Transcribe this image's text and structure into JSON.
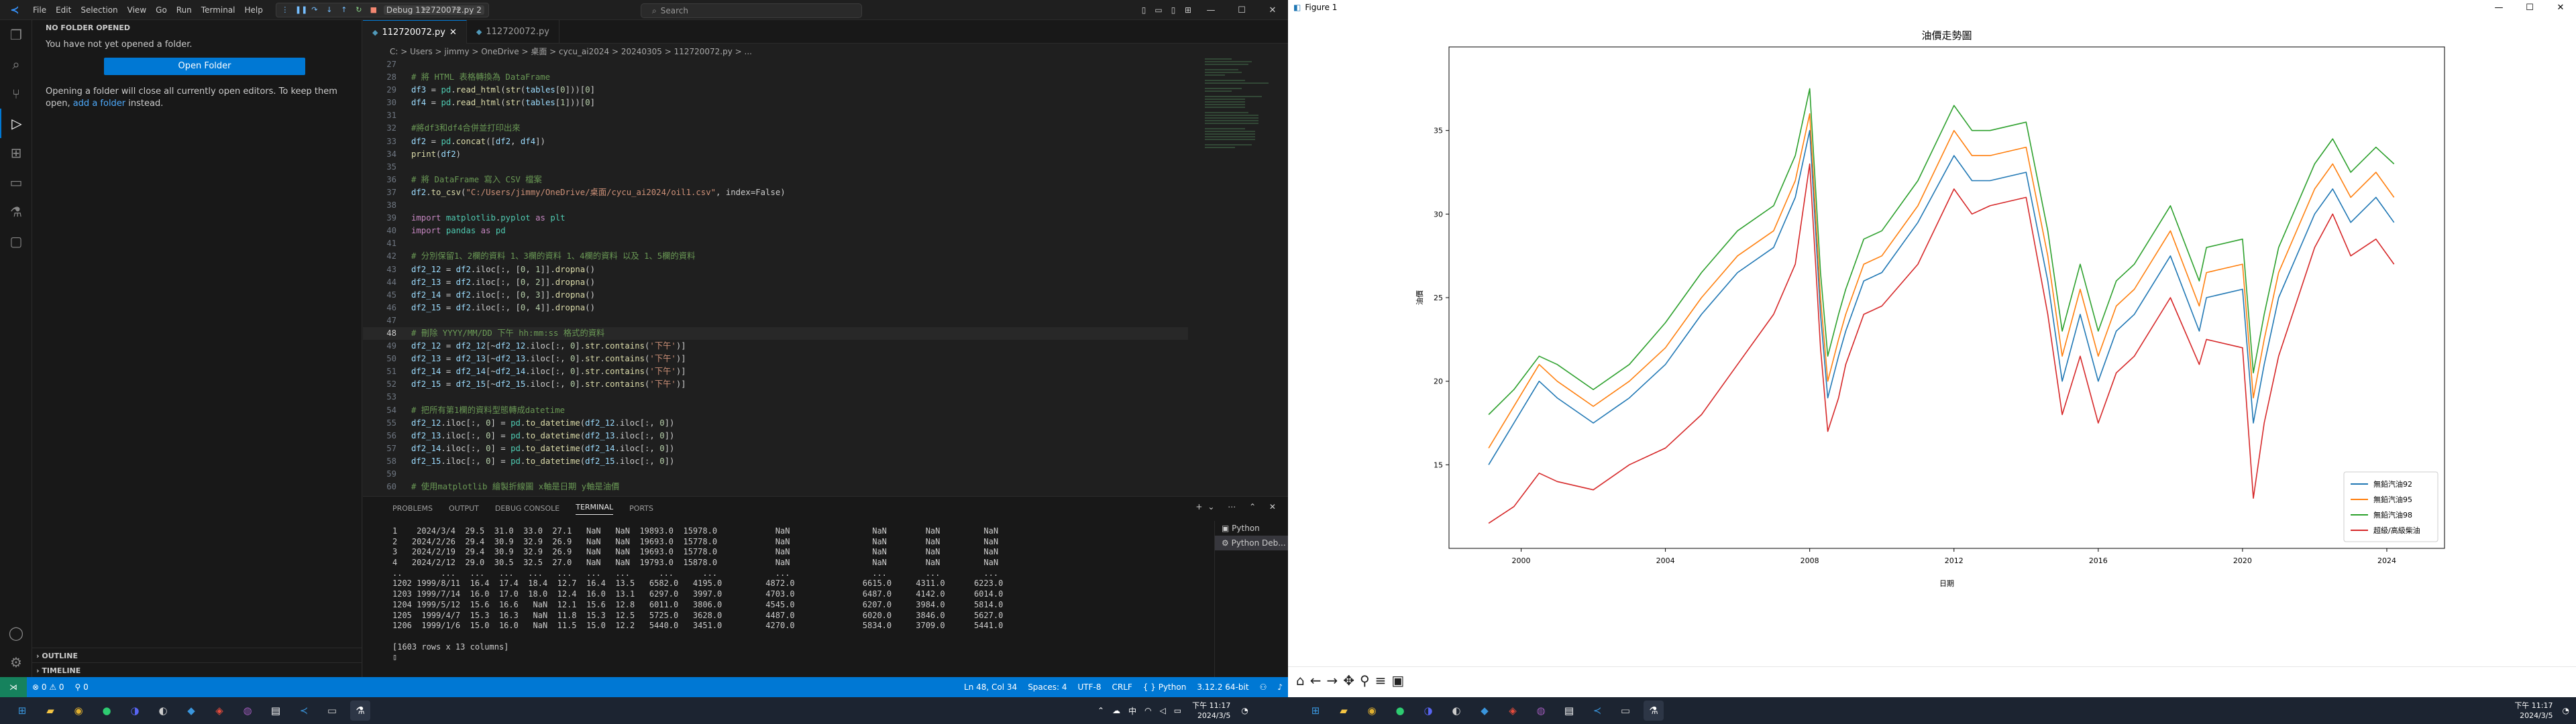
{
  "vscode": {
    "menu": [
      "File",
      "Edit",
      "Selection",
      "View",
      "Go",
      "Run",
      "Terminal",
      "Help"
    ],
    "debug_config": "Debug 112720072.py 2",
    "search_placeholder": "Search",
    "tabs": [
      {
        "label": "112720072.py",
        "active": true
      },
      {
        "label": "112720072.py",
        "active": false
      }
    ],
    "breadcrumb": "C: > Users > jimmy > OneDrive > 桌面 > cycu_ai2024 > 20240305 > 112720072.py > ...",
    "sidebar": {
      "title": "NO FOLDER OPENED",
      "line1": "You have not yet opened a folder.",
      "button": "Open Folder",
      "line2_pre": "Opening a folder will close all currently open editors. To keep them open, ",
      "line2_link": "add a folder",
      "line2_post": " instead.",
      "outline": "OUTLINE",
      "timeline": "TIMELINE"
    },
    "code_lines": [
      {
        "n": "27",
        "t": ""
      },
      {
        "n": "28",
        "t": "# 將 HTML 表格轉換為 DataFrame"
      },
      {
        "n": "29",
        "t": "df3 = pd.read_html(str(tables[0]))[0]"
      },
      {
        "n": "30",
        "t": "df4 = pd.read_html(str(tables[1]))[0]"
      },
      {
        "n": "31",
        "t": ""
      },
      {
        "n": "32",
        "t": "#將df3和df4合併並打印出來"
      },
      {
        "n": "33",
        "t": "df2 = pd.concat([df2, df4])"
      },
      {
        "n": "34",
        "t": "print(df2)"
      },
      {
        "n": "35",
        "t": ""
      },
      {
        "n": "36",
        "t": "# 將 DataFrame 寫入 CSV 檔案"
      },
      {
        "n": "37",
        "t": "df2.to_csv(\"C:/Users/jimmy/OneDrive/桌面/cycu_ai2024/oil1.csv\", index=False)"
      },
      {
        "n": "38",
        "t": ""
      },
      {
        "n": "39",
        "t": "import matplotlib.pyplot as plt"
      },
      {
        "n": "40",
        "t": "import pandas as pd"
      },
      {
        "n": "41",
        "t": ""
      },
      {
        "n": "42",
        "t": "# 分別保留1、2欄的資料 1、3欄的資料 1、4欄的資料 以及 1、5欄的資料"
      },
      {
        "n": "43",
        "t": "df2_12 = df2.iloc[:, [0, 1]].dropna()"
      },
      {
        "n": "44",
        "t": "df2_13 = df2.iloc[:, [0, 2]].dropna()"
      },
      {
        "n": "45",
        "t": "df2_14 = df2.iloc[:, [0, 3]].dropna()"
      },
      {
        "n": "46",
        "t": "df2_15 = df2.iloc[:, [0, 4]].dropna()"
      },
      {
        "n": "47",
        "t": ""
      },
      {
        "n": "48",
        "t": "# 刪除 YYYY/MM/DD 下午 hh:mm:ss 格式的資料",
        "cur": true
      },
      {
        "n": "49",
        "t": "df2_12 = df2_12[~df2_12.iloc[:, 0].str.contains('下午')]"
      },
      {
        "n": "50",
        "t": "df2_13 = df2_13[~df2_13.iloc[:, 0].str.contains('下午')]"
      },
      {
        "n": "51",
        "t": "df2_14 = df2_14[~df2_14.iloc[:, 0].str.contains('下午')]"
      },
      {
        "n": "52",
        "t": "df2_15 = df2_15[~df2_15.iloc[:, 0].str.contains('下午')]"
      },
      {
        "n": "53",
        "t": ""
      },
      {
        "n": "54",
        "t": "# 把所有第1欄的資料型態轉成datetime"
      },
      {
        "n": "55",
        "t": "df2_12.iloc[:, 0] = pd.to_datetime(df2_12.iloc[:, 0])"
      },
      {
        "n": "56",
        "t": "df2_13.iloc[:, 0] = pd.to_datetime(df2_13.iloc[:, 0])"
      },
      {
        "n": "57",
        "t": "df2_14.iloc[:, 0] = pd.to_datetime(df2_14.iloc[:, 0])"
      },
      {
        "n": "58",
        "t": "df2_15.iloc[:, 0] = pd.to_datetime(df2_15.iloc[:, 0])"
      },
      {
        "n": "59",
        "t": ""
      },
      {
        "n": "60",
        "t": "# 使用matplotlib 繪製折線圖 x軸是日期 y軸是油價"
      },
      {
        "n": "61",
        "t": "plt.figure(figsize=(12, 6))"
      }
    ],
    "panel_tabs": [
      "PROBLEMS",
      "OUTPUT",
      "DEBUG CONSOLE",
      "TERMINAL",
      "PORTS"
    ],
    "terminal_lines": [
      "1    2024/3/4  29.5  31.0  33.0  27.1   NaN   NaN  19893.0  15978.0            NaN                 NaN        NaN         NaN",
      "2   2024/2/26  29.4  30.9  32.9  26.9   NaN   NaN  19693.0  15778.0            NaN                 NaN        NaN         NaN",
      "3   2024/2/19  29.4  30.9  32.9  26.9   NaN   NaN  19693.0  15778.0            NaN                 NaN        NaN         NaN",
      "4   2024/2/12  29.0  30.5  32.5  27.0   NaN   NaN  19793.0  15878.0            NaN                 NaN        NaN         NaN",
      "..        ...   ...   ...   ...   ...   ...   ...      ...      ...            ...                 ...        ...         ...",
      "1202 1999/8/11  16.4  17.4  18.4  12.7  16.4  13.5   6582.0   4195.0         4872.0              6615.0     4311.0      6223.0",
      "1203 1999/7/14  16.0  17.0  18.0  12.4  16.0  13.1   6297.0   3997.0         4703.0              6487.0     4142.0      6014.0",
      "1204 1999/5/12  15.6  16.6   NaN  12.1  15.6  12.8   6011.0   3806.0         4545.0              6207.0     3984.0      5814.0",
      "1205  1999/4/7  15.3  16.3   NaN  11.8  15.3  12.5   5725.0   3628.0         4487.0              6020.0     3846.0      5627.0",
      "1206  1999/1/6  15.0  16.0   NaN  11.5  15.0  12.2   5440.0   3451.0         4270.0              5834.0     3709.0      5441.0",
      "",
      "[1603 rows x 13 columns]"
    ],
    "terminal_list": [
      "Python",
      "Python Deb..."
    ],
    "status": {
      "errors": "0",
      "warnings": "0",
      "ports": "0",
      "position": "Ln 48, Col 34",
      "spaces": "Spaces: 4",
      "encoding": "UTF-8",
      "eol": "CRLF",
      "language": "Python",
      "interpreter": "3.12.2 64-bit"
    }
  },
  "figure": {
    "window_title": "Figure 1"
  },
  "taskbar": {
    "time": "下午 11:17",
    "date": "2024/3/5"
  },
  "chart_data": {
    "type": "line",
    "title": "油價走勢圖",
    "xlabel": "日期",
    "ylabel": "油價",
    "xlim": [
      1998.0,
      2025.6
    ],
    "ylim": [
      10.0,
      40.0
    ],
    "x_ticks": [
      "2000",
      "2004",
      "2008",
      "2012",
      "2016",
      "2020",
      "2024"
    ],
    "y_ticks": [
      "15",
      "20",
      "25",
      "30",
      "35"
    ],
    "legend_position": "lower-right",
    "grid": false,
    "x": [
      1999.1,
      1999.8,
      2000.5,
      2001.0,
      2002.0,
      2003.0,
      2004.0,
      2005.0,
      2006.0,
      2007.0,
      2007.6,
      2008.0,
      2008.3,
      2008.5,
      2008.8,
      2009.0,
      2009.5,
      2010.0,
      2011.0,
      2012.0,
      2012.5,
      2013.0,
      2014.0,
      2014.6,
      2015.0,
      2015.5,
      2016.0,
      2016.5,
      2017.0,
      2018.0,
      2018.8,
      2019.0,
      2020.0,
      2020.3,
      2020.6,
      2021.0,
      2022.0,
      2022.5,
      2023.0,
      2023.7,
      2024.2
    ],
    "series": [
      {
        "name": "無鉛汽油92",
        "color": "#1f77b4",
        "values": [
          15.0,
          17.5,
          20.0,
          19.0,
          17.5,
          19.0,
          21.0,
          24.0,
          26.5,
          28.0,
          31.0,
          35.0,
          24.0,
          19.0,
          21.5,
          23.0,
          26.0,
          26.5,
          29.5,
          33.5,
          32.0,
          32.0,
          32.5,
          26.0,
          20.0,
          24.0,
          20.0,
          23.0,
          24.0,
          27.5,
          23.0,
          25.0,
          25.5,
          17.5,
          21.0,
          25.0,
          30.0,
          31.5,
          29.5,
          31.0,
          29.5
        ]
      },
      {
        "name": "無鉛汽油95",
        "color": "#ff7f0e",
        "values": [
          16.0,
          18.5,
          21.0,
          20.0,
          18.5,
          20.0,
          22.0,
          25.0,
          27.5,
          29.0,
          32.0,
          36.0,
          25.0,
          20.0,
          22.5,
          24.0,
          27.0,
          27.5,
          30.5,
          35.0,
          33.5,
          33.5,
          34.0,
          27.5,
          21.5,
          25.5,
          21.5,
          24.5,
          25.5,
          29.0,
          24.5,
          26.5,
          27.0,
          19.0,
          22.5,
          26.5,
          31.5,
          33.0,
          31.0,
          32.5,
          31.0
        ]
      },
      {
        "name": "無鉛汽油98",
        "color": "#2ca02c",
        "values": [
          18.0,
          19.5,
          21.5,
          21.0,
          19.5,
          21.0,
          23.5,
          26.5,
          29.0,
          30.5,
          33.5,
          37.5,
          26.5,
          21.5,
          24.0,
          25.5,
          28.5,
          29.0,
          32.0,
          36.5,
          35.0,
          35.0,
          35.5,
          29.0,
          23.0,
          27.0,
          23.0,
          26.0,
          27.0,
          30.5,
          26.0,
          28.0,
          28.5,
          20.5,
          24.0,
          28.0,
          33.0,
          34.5,
          32.5,
          34.0,
          33.0
        ]
      },
      {
        "name": "超級/高級柴油",
        "color": "#d62728",
        "values": [
          11.5,
          12.5,
          14.5,
          14.0,
          13.5,
          15.0,
          16.0,
          18.0,
          21.0,
          24.0,
          27.0,
          33.0,
          22.0,
          17.0,
          19.0,
          21.0,
          24.0,
          24.5,
          27.0,
          31.5,
          30.0,
          30.5,
          31.0,
          24.0,
          18.0,
          21.5,
          17.5,
          20.5,
          21.5,
          25.0,
          21.0,
          22.5,
          22.0,
          13.0,
          17.5,
          21.5,
          28.0,
          30.0,
          27.5,
          28.5,
          27.0
        ]
      }
    ]
  }
}
